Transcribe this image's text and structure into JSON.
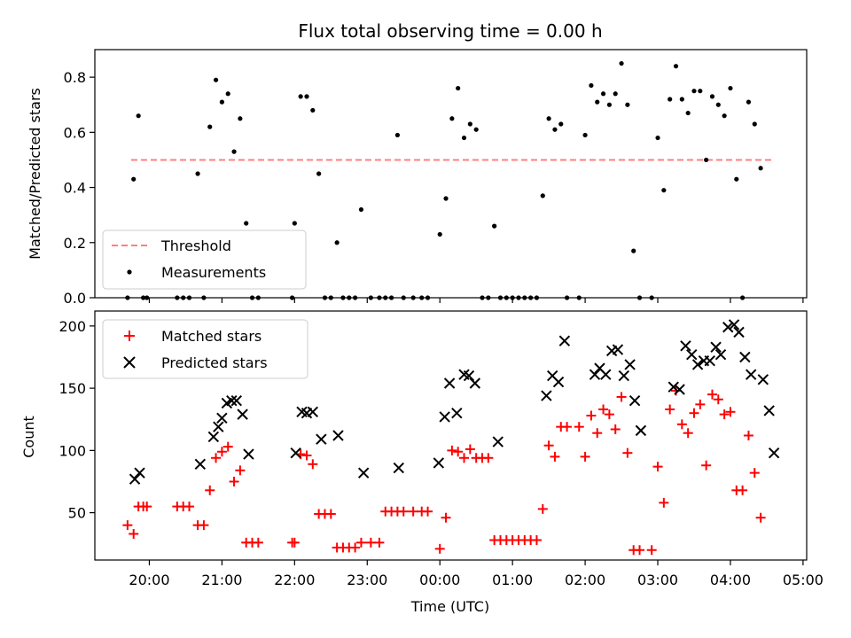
{
  "chart_data": [
    {
      "type": "scatter",
      "title": "Flux total observing time = 0.00 h",
      "xlabel": "",
      "ylabel": "Matched/Predicted stars",
      "ylim": [
        0,
        0.9
      ],
      "yticks": [
        0.0,
        0.2,
        0.4,
        0.6,
        0.8
      ],
      "ytick_labels": [
        "0.0",
        "0.2",
        "0.4",
        "0.6",
        "0.8"
      ],
      "xlim": [
        "19:15",
        "05:03"
      ],
      "legend_position": "lower-left",
      "series": [
        {
          "name": "Threshold",
          "style": "dashed-line",
          "color": "#ff7f7f",
          "x": [
            "19:45",
            "04:35"
          ],
          "y": [
            0.5,
            0.5
          ]
        },
        {
          "name": "Measurements",
          "style": "dot",
          "color": "#000000",
          "points": [
            [
              "19:42",
              0.0
            ],
            [
              "19:47",
              0.43
            ],
            [
              "19:51",
              0.66
            ],
            [
              "19:55",
              0.0
            ],
            [
              "19:58",
              0.0
            ],
            [
              "20:23",
              0.0
            ],
            [
              "20:28",
              0.0
            ],
            [
              "20:33",
              0.0
            ],
            [
              "20:40",
              0.45
            ],
            [
              "20:45",
              0.0
            ],
            [
              "20:50",
              0.62
            ],
            [
              "20:55",
              0.79
            ],
            [
              "21:00",
              0.71
            ],
            [
              "21:05",
              0.74
            ],
            [
              "21:10",
              0.53
            ],
            [
              "21:15",
              0.65
            ],
            [
              "21:20",
              0.27
            ],
            [
              "21:25",
              0.0
            ],
            [
              "21:30",
              0.0
            ],
            [
              "21:58",
              0.0
            ],
            [
              "22:00",
              0.27
            ],
            [
              "22:05",
              0.73
            ],
            [
              "22:10",
              0.73
            ],
            [
              "22:15",
              0.68
            ],
            [
              "22:20",
              0.45
            ],
            [
              "22:25",
              0.0
            ],
            [
              "22:30",
              0.0
            ],
            [
              "22:35",
              0.2
            ],
            [
              "22:40",
              0.0
            ],
            [
              "22:45",
              0.0
            ],
            [
              "22:50",
              0.0
            ],
            [
              "22:55",
              0.32
            ],
            [
              "23:03",
              0.0
            ],
            [
              "23:10",
              0.0
            ],
            [
              "23:15",
              0.0
            ],
            [
              "23:20",
              0.0
            ],
            [
              "23:25",
              0.59
            ],
            [
              "23:30",
              0.0
            ],
            [
              "23:38",
              0.0
            ],
            [
              "23:45",
              0.0
            ],
            [
              "23:50",
              0.0
            ],
            [
              "00:00",
              0.23
            ],
            [
              "00:05",
              0.36
            ],
            [
              "00:10",
              0.65
            ],
            [
              "00:15",
              0.76
            ],
            [
              "00:20",
              0.58
            ],
            [
              "00:25",
              0.63
            ],
            [
              "00:30",
              0.61
            ],
            [
              "00:35",
              0.0
            ],
            [
              "00:40",
              0.0
            ],
            [
              "00:45",
              0.26
            ],
            [
              "00:50",
              0.0
            ],
            [
              "00:55",
              0.0
            ],
            [
              "01:00",
              0.0
            ],
            [
              "01:05",
              0.0
            ],
            [
              "01:10",
              0.0
            ],
            [
              "01:15",
              0.0
            ],
            [
              "01:20",
              0.0
            ],
            [
              "01:25",
              0.37
            ],
            [
              "01:30",
              0.65
            ],
            [
              "01:35",
              0.61
            ],
            [
              "01:40",
              0.63
            ],
            [
              "01:45",
              0.0
            ],
            [
              "01:55",
              0.0
            ],
            [
              "02:00",
              0.59
            ],
            [
              "02:05",
              0.77
            ],
            [
              "02:10",
              0.71
            ],
            [
              "02:15",
              0.74
            ],
            [
              "02:20",
              0.7
            ],
            [
              "02:25",
              0.74
            ],
            [
              "02:30",
              0.85
            ],
            [
              "02:35",
              0.7
            ],
            [
              "02:40",
              0.17
            ],
            [
              "02:45",
              0.0
            ],
            [
              "02:55",
              0.0
            ],
            [
              "03:00",
              0.58
            ],
            [
              "03:05",
              0.39
            ],
            [
              "03:10",
              0.72
            ],
            [
              "03:15",
              0.84
            ],
            [
              "03:20",
              0.72
            ],
            [
              "03:25",
              0.67
            ],
            [
              "03:30",
              0.75
            ],
            [
              "03:35",
              0.75
            ],
            [
              "03:40",
              0.5
            ],
            [
              "03:45",
              0.73
            ],
            [
              "03:50",
              0.7
            ],
            [
              "03:55",
              0.66
            ],
            [
              "04:00",
              0.76
            ],
            [
              "04:05",
              0.43
            ],
            [
              "04:10",
              0.0
            ],
            [
              "04:15",
              0.71
            ],
            [
              "04:20",
              0.63
            ],
            [
              "04:25",
              0.47
            ]
          ]
        }
      ]
    },
    {
      "type": "scatter",
      "title": "",
      "xlabel": "Time (UTC)",
      "ylabel": "Count",
      "ylim": [
        12,
        212
      ],
      "yticks": [
        50,
        100,
        150,
        200
      ],
      "ytick_labels": [
        "50",
        "100",
        "150",
        "200"
      ],
      "xlim": [
        "19:15",
        "05:03"
      ],
      "xticks": [
        "20:00",
        "21:00",
        "22:00",
        "23:00",
        "00:00",
        "01:00",
        "02:00",
        "03:00",
        "04:00",
        "05:00"
      ],
      "xtick_labels": [
        "20:00",
        "21:00",
        "22:00",
        "23:00",
        "00:00",
        "01:00",
        "02:00",
        "03:00",
        "04:00",
        "05:00"
      ],
      "legend_position": "upper-left",
      "series": [
        {
          "name": "Matched stars",
          "style": "plus",
          "color": "#ff0000",
          "points": [
            [
              "19:42",
              40
            ],
            [
              "19:47",
              33
            ],
            [
              "19:51",
              55
            ],
            [
              "19:55",
              55
            ],
            [
              "19:58",
              55
            ],
            [
              "20:23",
              55
            ],
            [
              "20:28",
              55
            ],
            [
              "20:33",
              55
            ],
            [
              "20:40",
              40
            ],
            [
              "20:45",
              40
            ],
            [
              "20:50",
              68
            ],
            [
              "20:55",
              94
            ],
            [
              "21:00",
              99
            ],
            [
              "21:05",
              103
            ],
            [
              "21:10",
              75
            ],
            [
              "21:15",
              84
            ],
            [
              "21:20",
              26
            ],
            [
              "21:25",
              26
            ],
            [
              "21:30",
              26
            ],
            [
              "21:58",
              26
            ],
            [
              "22:00",
              26
            ],
            [
              "22:05",
              97
            ],
            [
              "22:10",
              96
            ],
            [
              "22:15",
              89
            ],
            [
              "22:20",
              49
            ],
            [
              "22:25",
              49
            ],
            [
              "22:30",
              49
            ],
            [
              "22:35",
              22
            ],
            [
              "22:40",
              22
            ],
            [
              "22:45",
              22
            ],
            [
              "22:50",
              22
            ],
            [
              "22:55",
              26
            ],
            [
              "23:03",
              26
            ],
            [
              "23:10",
              26
            ],
            [
              "23:15",
              51
            ],
            [
              "23:20",
              51
            ],
            [
              "23:25",
              51
            ],
            [
              "23:30",
              51
            ],
            [
              "23:38",
              51
            ],
            [
              "23:45",
              51
            ],
            [
              "23:50",
              51
            ],
            [
              "00:00",
              21
            ],
            [
              "00:05",
              46
            ],
            [
              "00:10",
              100
            ],
            [
              "00:15",
              99
            ],
            [
              "00:20",
              94
            ],
            [
              "00:25",
              101
            ],
            [
              "00:30",
              94
            ],
            [
              "00:35",
              94
            ],
            [
              "00:40",
              94
            ],
            [
              "00:45",
              28
            ],
            [
              "00:50",
              28
            ],
            [
              "00:55",
              28
            ],
            [
              "01:00",
              28
            ],
            [
              "01:05",
              28
            ],
            [
              "01:10",
              28
            ],
            [
              "01:15",
              28
            ],
            [
              "01:20",
              28
            ],
            [
              "01:25",
              53
            ],
            [
              "01:30",
              104
            ],
            [
              "01:35",
              95
            ],
            [
              "01:40",
              119
            ],
            [
              "01:45",
              119
            ],
            [
              "01:55",
              119
            ],
            [
              "02:00",
              95
            ],
            [
              "02:05",
              128
            ],
            [
              "02:10",
              114
            ],
            [
              "02:15",
              133
            ],
            [
              "02:20",
              129
            ],
            [
              "02:25",
              117
            ],
            [
              "02:30",
              143
            ],
            [
              "02:35",
              98
            ],
            [
              "02:40",
              20
            ],
            [
              "02:45",
              20
            ],
            [
              "02:55",
              20
            ],
            [
              "03:00",
              87
            ],
            [
              "03:05",
              58
            ],
            [
              "03:10",
              133
            ],
            [
              "03:15",
              148
            ],
            [
              "03:20",
              121
            ],
            [
              "03:25",
              114
            ],
            [
              "03:30",
              130
            ],
            [
              "03:35",
              137
            ],
            [
              "03:40",
              88
            ],
            [
              "03:45",
              145
            ],
            [
              "03:50",
              141
            ],
            [
              "03:55",
              129
            ],
            [
              "04:00",
              131
            ],
            [
              "04:05",
              68
            ],
            [
              "04:10",
              68
            ],
            [
              "04:15",
              112
            ],
            [
              "04:20",
              82
            ],
            [
              "04:25",
              46
            ]
          ]
        },
        {
          "name": "Predicted stars",
          "style": "x",
          "color": "#000000",
          "points": [
            [
              "19:48",
              77
            ],
            [
              "19:52",
              82
            ],
            [
              "20:42",
              89
            ],
            [
              "20:53",
              111
            ],
            [
              "20:57",
              119
            ],
            [
              "21:00",
              126
            ],
            [
              "21:04",
              138
            ],
            [
              "21:08",
              140
            ],
            [
              "21:12",
              140
            ],
            [
              "21:17",
              129
            ],
            [
              "21:22",
              97
            ],
            [
              "22:01",
              98
            ],
            [
              "22:06",
              131
            ],
            [
              "22:10",
              130
            ],
            [
              "22:15",
              131
            ],
            [
              "22:22",
              109
            ],
            [
              "22:36",
              112
            ],
            [
              "22:57",
              82
            ],
            [
              "23:26",
              86
            ],
            [
              "23:59",
              90
            ],
            [
              "00:04",
              127
            ],
            [
              "00:08",
              154
            ],
            [
              "00:14",
              130
            ],
            [
              "00:20",
              161
            ],
            [
              "00:24",
              160
            ],
            [
              "00:29",
              154
            ],
            [
              "00:48",
              107
            ],
            [
              "01:28",
              144
            ],
            [
              "01:33",
              160
            ],
            [
              "01:38",
              155
            ],
            [
              "01:43",
              188
            ],
            [
              "02:08",
              161
            ],
            [
              "02:12",
              166
            ],
            [
              "02:17",
              161
            ],
            [
              "02:22",
              180
            ],
            [
              "02:27",
              181
            ],
            [
              "02:32",
              160
            ],
            [
              "02:37",
              169
            ],
            [
              "02:41",
              140
            ],
            [
              "02:46",
              116
            ],
            [
              "03:13",
              151
            ],
            [
              "03:18",
              149
            ],
            [
              "03:23",
              184
            ],
            [
              "03:28",
              177
            ],
            [
              "03:33",
              169
            ],
            [
              "03:38",
              172
            ],
            [
              "03:43",
              172
            ],
            [
              "03:48",
              183
            ],
            [
              "03:52",
              177
            ],
            [
              "03:58",
              199
            ],
            [
              "04:03",
              201
            ],
            [
              "04:07",
              195
            ],
            [
              "04:12",
              175
            ],
            [
              "04:17",
              161
            ],
            [
              "04:27",
              157
            ],
            [
              "04:32",
              132
            ],
            [
              "04:36",
              98
            ]
          ]
        }
      ]
    }
  ]
}
